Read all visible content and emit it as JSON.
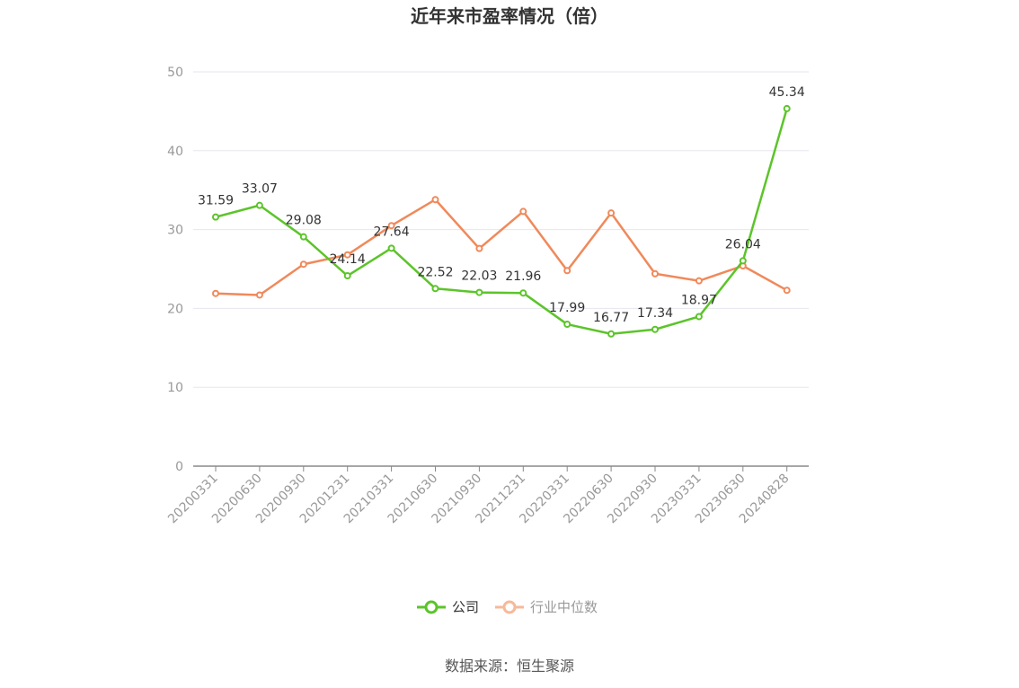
{
  "chart_data": {
    "type": "line",
    "title": "近年来市盈率情况（倍）",
    "categories": [
      "20200331",
      "20200630",
      "20200930",
      "20201231",
      "20210331",
      "20210630",
      "20210930",
      "20211231",
      "20220331",
      "20220630",
      "20220930",
      "20230331",
      "20230630",
      "20240828"
    ],
    "series": [
      {
        "name": "公司",
        "color": "#5cc42a",
        "values": [
          31.59,
          33.07,
          29.08,
          24.14,
          27.64,
          22.52,
          22.03,
          21.96,
          17.99,
          16.77,
          17.34,
          18.97,
          26.04,
          45.34
        ],
        "labels": [
          "31.59",
          "33.07",
          "29.08",
          "24.14",
          "27.64",
          "22.52",
          "22.03",
          "21.96",
          "17.99",
          "16.77",
          "17.34",
          "18.97",
          "26.04",
          "45.34"
        ]
      },
      {
        "name": "行业中位数",
        "color": "#f0895a",
        "legend_color": "#f6b99b",
        "values": [
          21.9,
          21.7,
          25.6,
          26.8,
          30.5,
          33.8,
          27.6,
          32.3,
          24.8,
          32.1,
          24.4,
          23.5,
          25.4,
          22.3
        ]
      }
    ],
    "ylim": [
      0,
      50
    ],
    "yticks": [
      "0",
      "10",
      "20",
      "30",
      "40",
      "50"
    ],
    "grid": true,
    "legend_position": "bottom"
  },
  "footer": {
    "source": "数据来源：恒生聚源"
  }
}
